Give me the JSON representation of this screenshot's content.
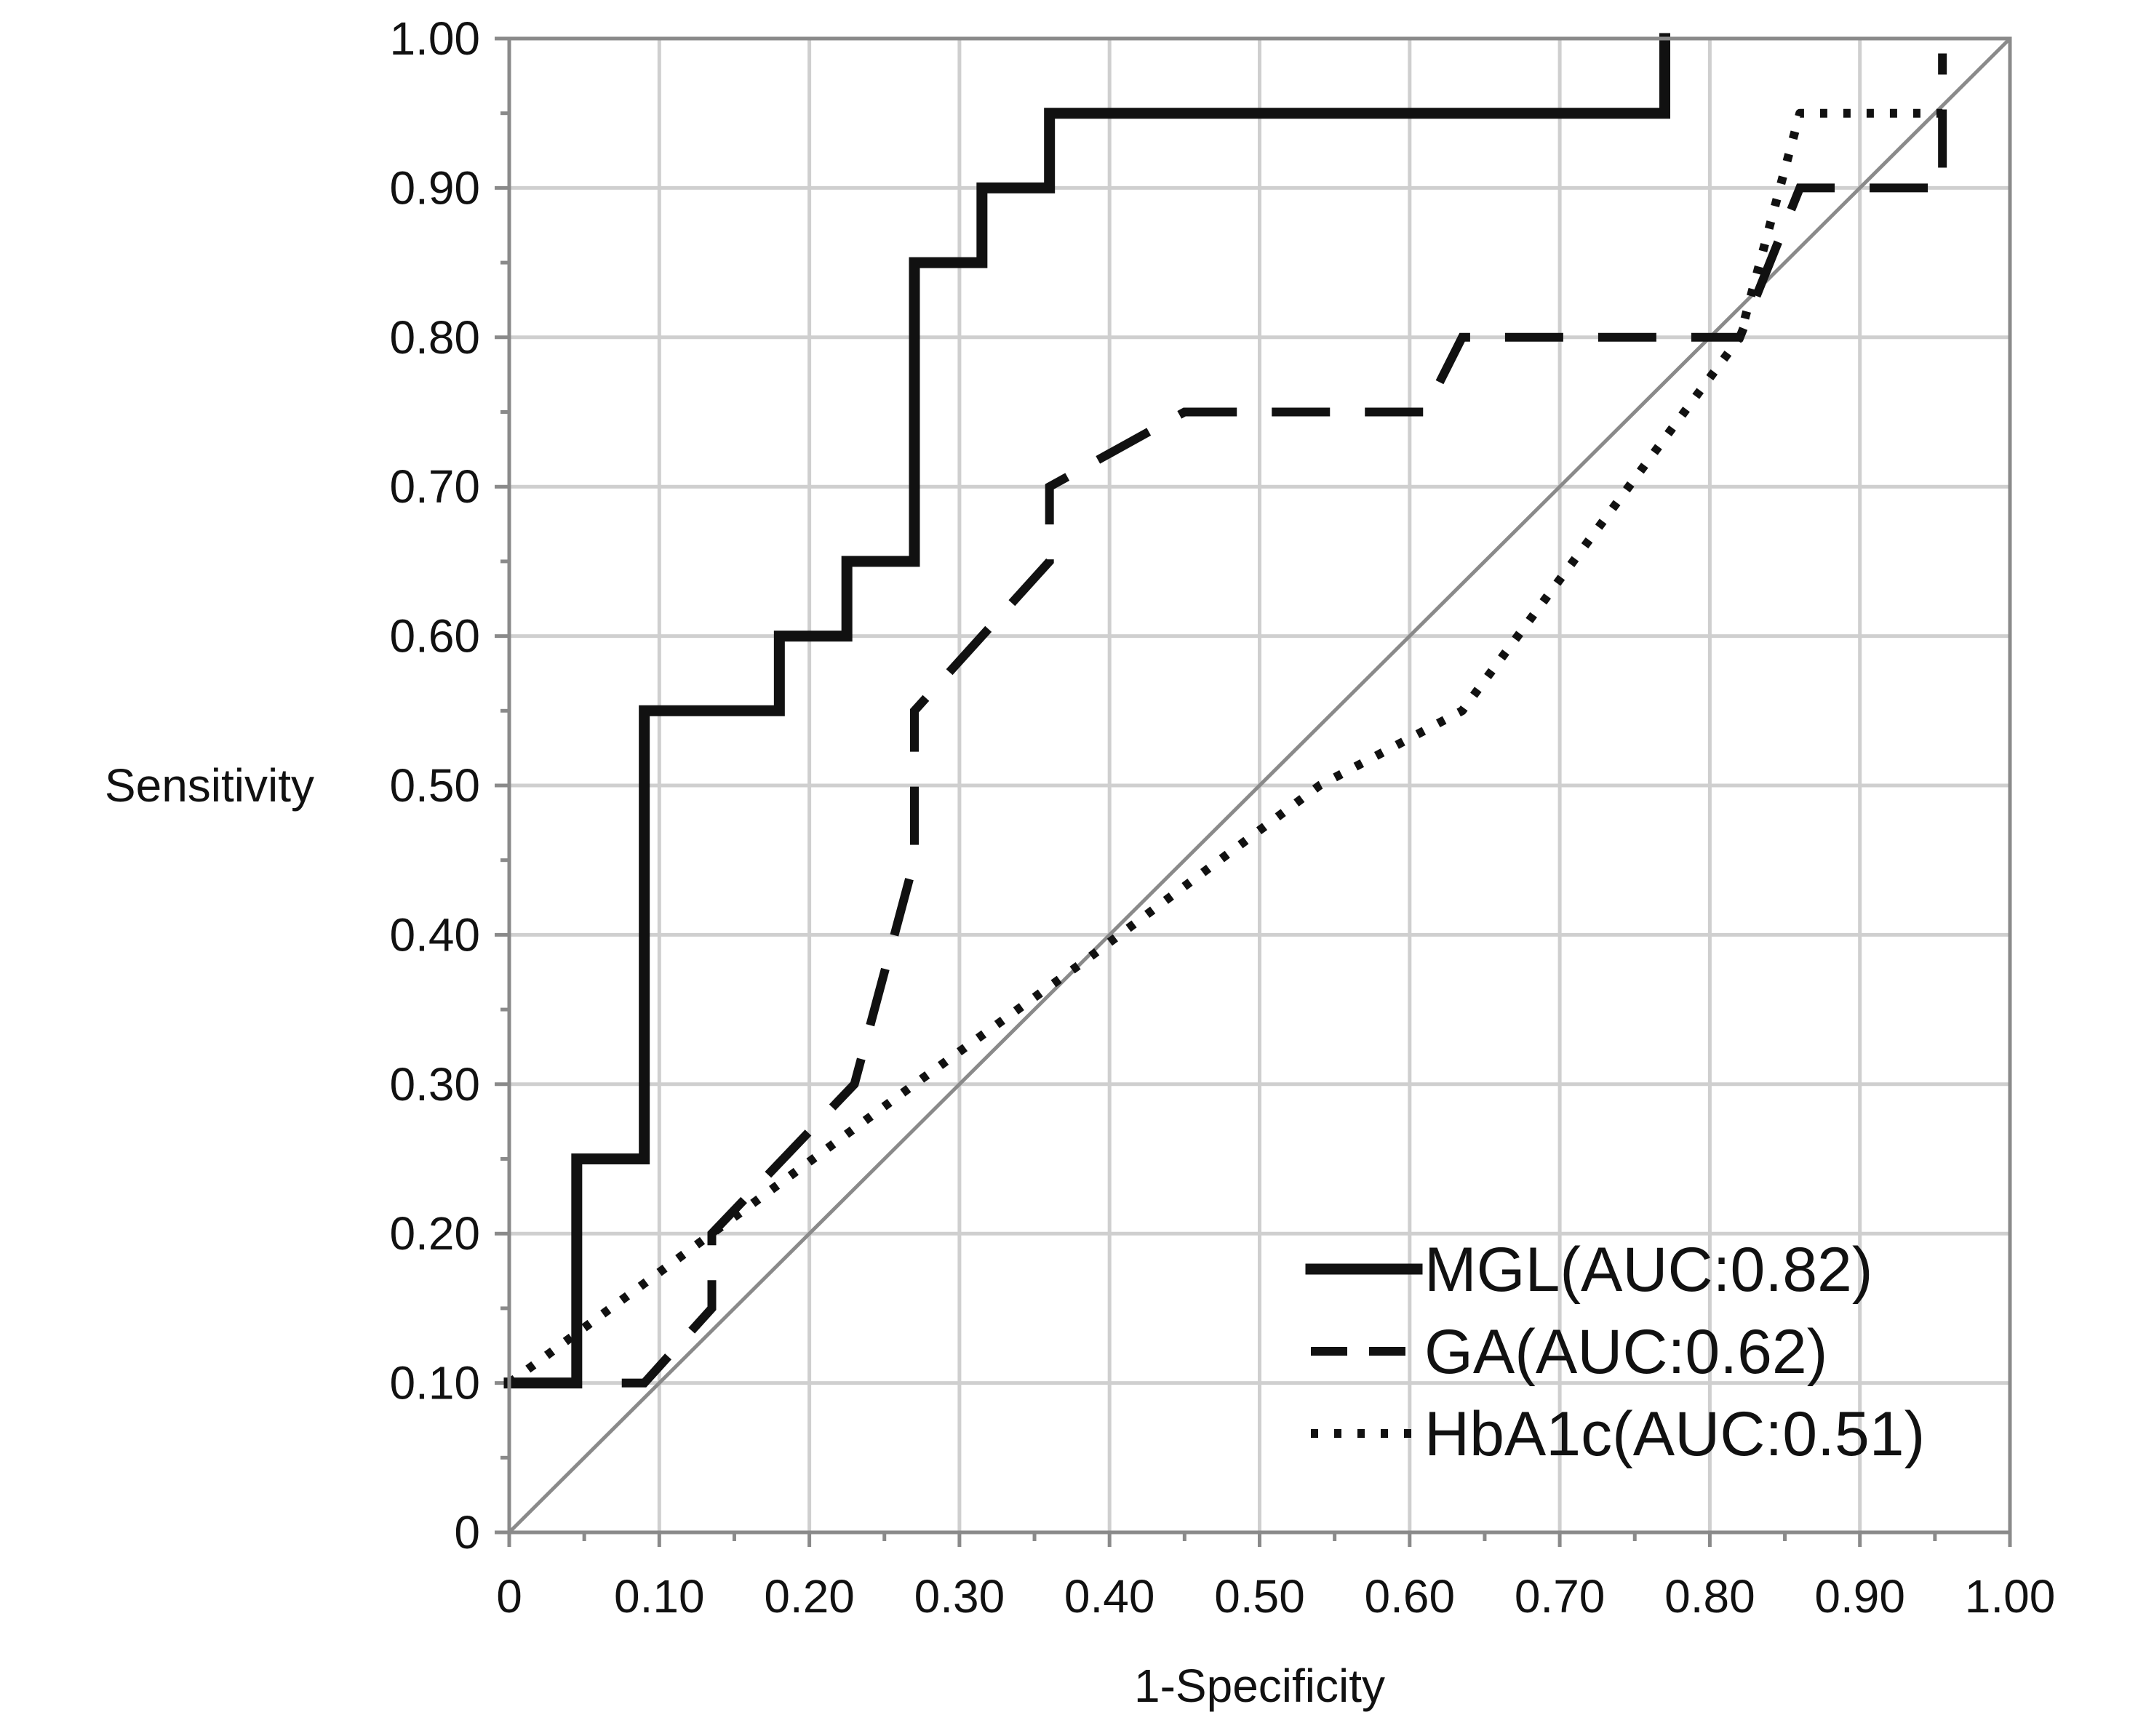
{
  "chart_data": {
    "type": "line",
    "xlabel": "1-Specificity",
    "ylabel": "Sensitivity",
    "xlim": [
      0,
      1
    ],
    "ylim": [
      0,
      1
    ],
    "grid": true,
    "legend_position": "bottom-right",
    "x_tick_labels": [
      "0",
      "0.10",
      "0.20",
      "0.30",
      "0.40",
      "0.50",
      "0.60",
      "0.70",
      "0.80",
      "0.90",
      "1.00"
    ],
    "y_tick_labels": [
      "0",
      "0.10",
      "0.20",
      "0.30",
      "0.40",
      "0.50",
      "0.60",
      "0.70",
      "0.80",
      "0.90",
      "1.00"
    ],
    "reference_line": {
      "x": [
        0,
        1
      ],
      "y": [
        0,
        1
      ],
      "color": "#8a8a8a"
    },
    "series": [
      {
        "name": "MGL(AUC:0.82)",
        "style": "solid",
        "color": "#111111",
        "points": [
          [
            0,
            0.1
          ],
          [
            0.045,
            0.1
          ],
          [
            0.045,
            0.25
          ],
          [
            0.09,
            0.25
          ],
          [
            0.09,
            0.55
          ],
          [
            0.18,
            0.55
          ],
          [
            0.18,
            0.6
          ],
          [
            0.225,
            0.6
          ],
          [
            0.225,
            0.65
          ],
          [
            0.27,
            0.65
          ],
          [
            0.27,
            0.85
          ],
          [
            0.315,
            0.85
          ],
          [
            0.315,
            0.9
          ],
          [
            0.36,
            0.9
          ],
          [
            0.36,
            0.95
          ],
          [
            0.77,
            0.95
          ],
          [
            0.77,
            1.0
          ]
        ]
      },
      {
        "name": "GA(AUC:0.62)",
        "style": "dashed",
        "color": "#111111",
        "points": [
          [
            0.075,
            0.1
          ],
          [
            0.09,
            0.1
          ],
          [
            0.135,
            0.15
          ],
          [
            0.135,
            0.2
          ],
          [
            0.23,
            0.3
          ],
          [
            0.27,
            0.45
          ],
          [
            0.27,
            0.55
          ],
          [
            0.36,
            0.65
          ],
          [
            0.36,
            0.7
          ],
          [
            0.45,
            0.75
          ],
          [
            0.61,
            0.75
          ],
          [
            0.635,
            0.8
          ],
          [
            0.82,
            0.8
          ],
          [
            0.86,
            0.9
          ],
          [
            0.955,
            0.9
          ],
          [
            0.955,
            0.99
          ]
        ]
      },
      {
        "name": "HbA1c(AUC:0.51)",
        "style": "dotted",
        "color": "#111111",
        "points": [
          [
            0,
            0.1
          ],
          [
            0.135,
            0.2
          ],
          [
            0.27,
            0.3
          ],
          [
            0.38,
            0.38
          ],
          [
            0.54,
            0.5
          ],
          [
            0.635,
            0.55
          ],
          [
            0.82,
            0.8
          ],
          [
            0.86,
            0.95
          ],
          [
            0.955,
            0.95
          ]
        ]
      }
    ]
  }
}
